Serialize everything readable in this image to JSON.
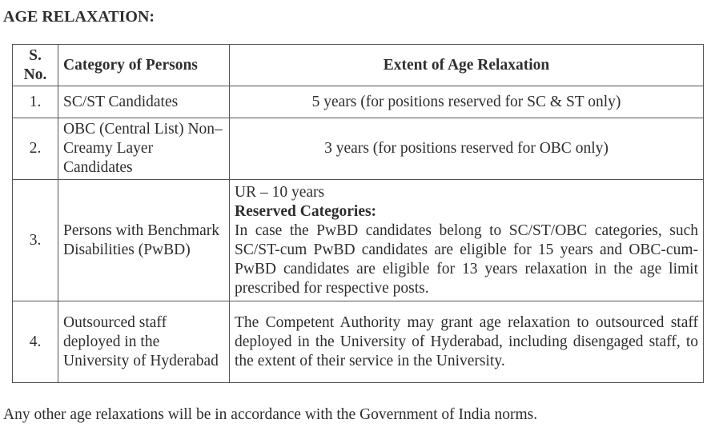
{
  "title": "AGE RELAXATION:",
  "headers": [
    "S. No.",
    "Category of Persons",
    "Extent of Age Relaxation"
  ],
  "rows": [
    {
      "no": "1.",
      "category": "SC/ST Candidates",
      "extent": "5 years (for positions reserved for SC & ST only)"
    },
    {
      "no": "2.",
      "category": "OBC (Central List) Non–Creamy Layer Candidates",
      "extent": "3 years (for positions reserved for OBC only)"
    },
    {
      "no": "3.",
      "category": "Persons with Benchmark Disabilities (PwBD)",
      "extent_line1": "UR – 10 years",
      "extent_heading": "Reserved Categories:",
      "extent_body": "In case the PwBD candidates belong to SC/ST/OBC categories, such SC/ST-cum PwBD candidates are eligible for 15 years and OBC-cum-PwBD candidates are eligible for 13 years relaxation in the age limit prescribed for respective posts."
    },
    {
      "no": "4.",
      "category": "Outsourced staff deployed in the University of Hyderabad",
      "extent": "The Competent Authority may grant age relaxation to outsourced staff deployed in the University of Hyderabad, including disengaged staff, to the extent of their service in the University."
    }
  ],
  "footer": "Any other age relaxations will be in accordance with the Government of India norms."
}
